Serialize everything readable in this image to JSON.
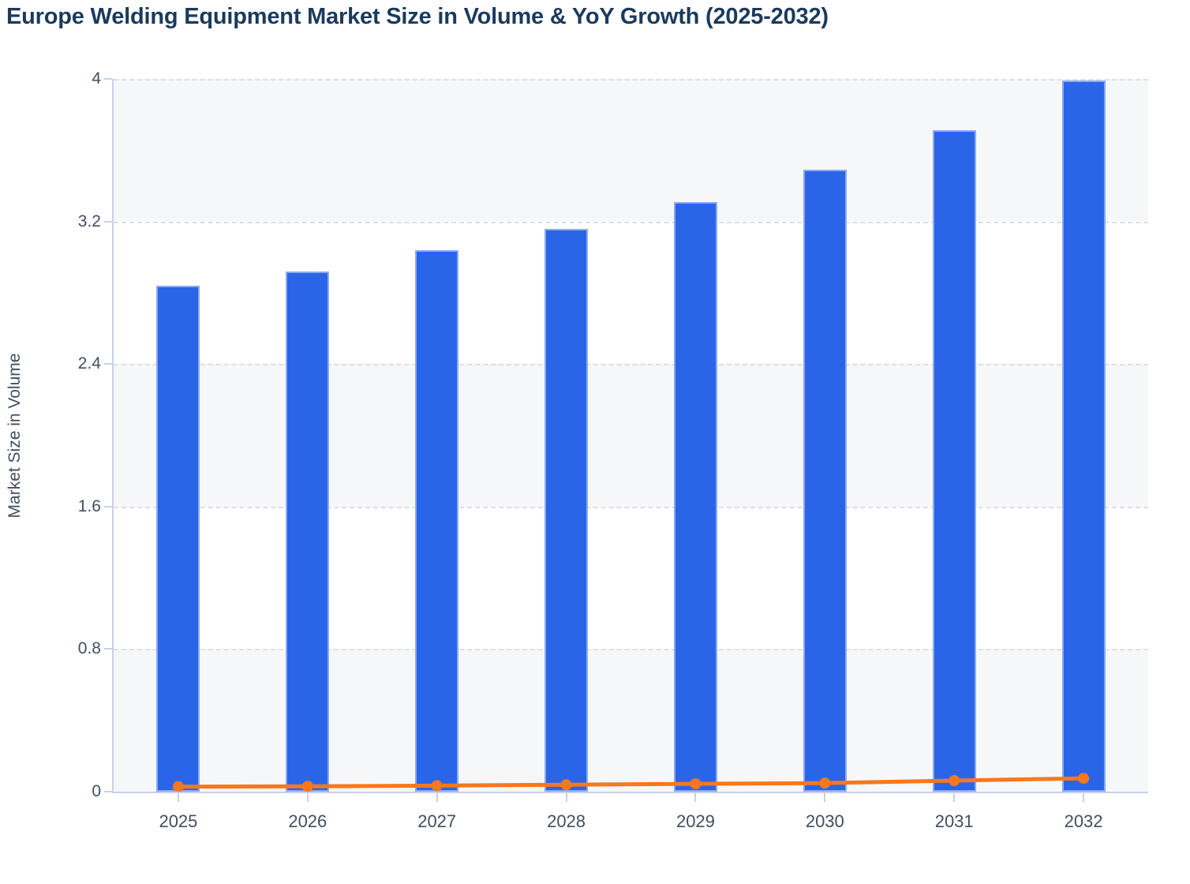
{
  "header": {
    "title": "Europe Welding Equipment Market Size in Volume & YoY Growth (2025-2032)",
    "title_color": "#1b3a5c"
  },
  "chart_data": {
    "type": "bar",
    "subtype": "bar+line combo",
    "title": "Europe Welding Equipment Market Size in Volume & YoY Growth (2025-2032)",
    "categories": [
      "2025",
      "2026",
      "2027",
      "2028",
      "2029",
      "2030",
      "2031",
      "2032"
    ],
    "series": [
      {
        "name": "Market Size in Volume",
        "type": "bar",
        "color": "#2a65e8",
        "values": [
          2.84,
          2.92,
          3.04,
          3.16,
          3.31,
          3.49,
          3.71,
          3.99
        ]
      },
      {
        "name": "YoY Growth",
        "type": "line",
        "color": "#f7781d",
        "values": [
          0.028,
          0.03,
          0.034,
          0.039,
          0.044,
          0.048,
          0.062,
          0.075
        ]
      }
    ],
    "xlabel": "",
    "ylabel": "Market Size in Volume",
    "ylim": [
      0,
      4
    ],
    "yticks": [
      {
        "value": 4,
        "label": "4"
      },
      {
        "value": 3.2,
        "label": "3.2"
      },
      {
        "value": 2.4,
        "label": "2.4"
      },
      {
        "value": 1.6,
        "label": "1.6"
      },
      {
        "value": 0.8,
        "label": "0.8"
      },
      {
        "value": 0,
        "label": "0"
      }
    ],
    "grid": "horizontal dashed, on",
    "legend_position": "none",
    "plot_band_colors": [
      "#f6f7f9",
      "#ffffff"
    ],
    "grid_color": "#dfe0e4",
    "axis_color": "#c7d1ea",
    "tick_label_color": "#414e5e"
  }
}
